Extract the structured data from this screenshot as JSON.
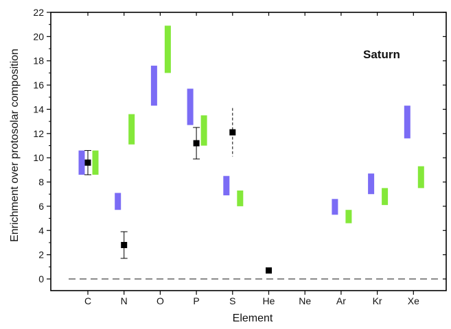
{
  "chart_data": {
    "type": "scatter",
    "title": "Saturn",
    "xlabel": "Element",
    "ylabel": "Enrichment over protosolar composition",
    "categories": [
      "C",
      "N",
      "O",
      "P",
      "S",
      "He",
      "Ne",
      "Ar",
      "Kr",
      "Xe"
    ],
    "ylim": [
      0,
      22
    ],
    "yticks": [
      0,
      2,
      4,
      6,
      8,
      10,
      12,
      14,
      16,
      18,
      20,
      22
    ],
    "grid": false,
    "reference_line": {
      "y": 0,
      "style": "dashed"
    },
    "colors": {
      "blue": "#7b6cf5",
      "green": "#84e83a",
      "points": "#000000"
    },
    "series": [
      {
        "type": "range-bar",
        "color": "#7b6cf5",
        "data": [
          {
            "category": "C",
            "low": 8.6,
            "high": 10.6
          },
          {
            "category": "N",
            "low": 5.7,
            "high": 7.1
          },
          {
            "category": "O",
            "low": 14.3,
            "high": 17.6
          },
          {
            "category": "P",
            "low": 12.7,
            "high": 15.7
          },
          {
            "category": "S",
            "low": 6.9,
            "high": 8.5
          },
          {
            "category": "Ar",
            "low": 5.3,
            "high": 6.6
          },
          {
            "category": "Kr",
            "low": 7.0,
            "high": 8.7
          },
          {
            "category": "Xe",
            "low": 11.6,
            "high": 14.3
          }
        ]
      },
      {
        "type": "range-bar",
        "color": "#84e83a",
        "data": [
          {
            "category": "C",
            "low": 8.6,
            "high": 10.6
          },
          {
            "category": "N",
            "low": 11.1,
            "high": 13.6
          },
          {
            "category": "O",
            "low": 17.0,
            "high": 20.9
          },
          {
            "category": "P",
            "low": 11.0,
            "high": 13.5
          },
          {
            "category": "S",
            "low": 6.0,
            "high": 7.3
          },
          {
            "category": "Ar",
            "low": 4.6,
            "high": 5.7
          },
          {
            "category": "Kr",
            "low": 6.1,
            "high": 7.5
          },
          {
            "category": "Xe",
            "low": 7.5,
            "high": 9.3
          }
        ]
      },
      {
        "type": "points-with-errorbars",
        "color": "#000000",
        "data": [
          {
            "category": "C",
            "value": 9.6,
            "low": 8.6,
            "high": 10.6,
            "style": "solid"
          },
          {
            "category": "N",
            "value": 2.8,
            "low": 1.7,
            "high": 3.9,
            "style": "solid"
          },
          {
            "category": "P",
            "value": 11.2,
            "low": 9.9,
            "high": 12.5,
            "style": "solid"
          },
          {
            "category": "S",
            "value": 12.1,
            "low": 10.1,
            "high": 14.1,
            "style": "dashed"
          },
          {
            "category": "He",
            "value": 0.7
          }
        ]
      }
    ]
  }
}
